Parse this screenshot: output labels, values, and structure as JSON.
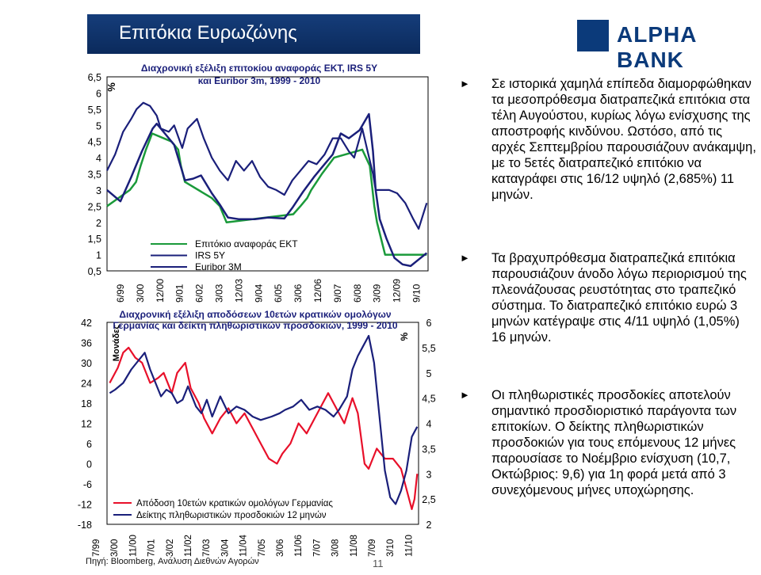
{
  "header": {
    "title": "Επιτόκια Ευρωζώνης",
    "logo_text": "ALPHA BANK"
  },
  "bullets": [
    "Σε ιστορικά χαμηλά επίπεδα διαμορφώθηκαν τα μεσοπρόθεσμα διατραπεζικά επιτόκια στα τέλη Αυγούστου, κυρίως λόγω ενίσχυσης της αποστροφής κινδύνου. Ωστόσο, από τις αρχές Σεπτεμβρίου παρουσιάζουν ανάκαμψη, με το 5ετές διατραπεζικό επιτόκιο να καταγράφει στις 16/12 υψηλό (2,685%) 11 μηνών.",
    "Τα βραχυπρόθεσμα διατραπεζικά επιτόκια παρουσιάζουν άνοδο λόγω περιορισμού της πλεονάζουσας ρευστότητας στο τραπεζικό σύστημα. Το διατραπεζικό επιτόκιο ευρώ 3 μηνών κατέγραψε στις 4/11 υψηλό (1,05%) 16 μηνών.",
    "Οι πληθωριστικές προσδοκίες αποτελούν σημαντικό προσδιοριστικό παράγοντα των επιτοκίων. Ο δείκτης πληθωριστικών προσδοκιών για τους επόμενους 12 μήνες παρουσίασε το Νοέμβριο ενίσχυση (10,7, Οκτώβριος: 9,6) για 1η φορά μετά από 3 συνεχόμενους μήνες υποχώρησης."
  ],
  "footer": {
    "source": "Πηγή: Bloomberg, Ανάλυση Διεθνών Αγορών",
    "page": "11"
  },
  "colors": {
    "ecb": "#1a9a3a",
    "irs": "#1a1f7a",
    "euribor": "#1a1f7a",
    "yield": "#e8102a",
    "sentiment": "#1a1f7a",
    "title_bar": "#0b2a5c"
  },
  "chart_data": [
    {
      "type": "line",
      "title": "Διαχρονική εξέλιξη επιτοκίου αναφοράς ΕΚΤ, IRS 5Y και Euribor 3m, 1999 - 2010",
      "ylabel": "%",
      "ylim": [
        0.5,
        6.5
      ],
      "yticks": [
        "6,5",
        "6",
        "5,5",
        "5",
        "4,5",
        "4",
        "3,5",
        "3",
        "2,5",
        "2",
        "1,5",
        "1",
        "0,5"
      ],
      "xticks": [
        "6/99",
        "3/00",
        "12/00",
        "9/01",
        "6/02",
        "3/03",
        "12/03",
        "9/04",
        "6/05",
        "3/06",
        "12/06",
        "9/07",
        "6/08",
        "3/09",
        "12/09",
        "9/10"
      ],
      "legend": [
        "Επιτόκιο αναφοράς ΕΚΤ",
        "IRS 5Y",
        "Euribor 3M"
      ],
      "series": [
        {
          "name": "Επιτόκιο αναφοράς ΕΚΤ",
          "x": [
            1999.0,
            1999.85,
            2000.08,
            2000.25,
            2000.45,
            2000.68,
            2001.4,
            2001.65,
            2001.75,
            2001.9,
            2002.9,
            2003.2,
            2003.45,
            2005.93,
            2006.2,
            2006.45,
            2006.6,
            2006.8,
            2007.0,
            2007.45,
            2008.5,
            2008.78,
            2008.85,
            2008.95,
            2009.05,
            2009.2,
            2009.35,
            2010.9
          ],
          "y": [
            2.5,
            3.0,
            3.25,
            3.75,
            4.25,
            4.75,
            4.5,
            4.25,
            3.75,
            3.25,
            2.75,
            2.5,
            2.0,
            2.25,
            2.5,
            2.75,
            3.0,
            3.25,
            3.5,
            4.0,
            4.25,
            3.75,
            3.25,
            2.5,
            2.0,
            1.5,
            1.0,
            1.0
          ]
        },
        {
          "name": "IRS 5Y",
          "x": [
            1999.0,
            1999.3,
            1999.6,
            1999.9,
            2000.1,
            2000.35,
            2000.6,
            2000.85,
            2001.0,
            2001.3,
            2001.5,
            2001.8,
            2002.0,
            2002.35,
            2002.6,
            2002.9,
            2003.2,
            2003.5,
            2003.8,
            2004.1,
            2004.4,
            2004.7,
            2005.0,
            2005.3,
            2005.6,
            2005.9,
            2006.2,
            2006.5,
            2006.8,
            2007.1,
            2007.4,
            2007.7,
            2008.0,
            2008.2,
            2008.5,
            2008.7,
            2008.9,
            2009.0,
            2009.2,
            2009.5,
            2009.8,
            2010.1,
            2010.4,
            2010.6,
            2010.75,
            2010.9
          ],
          "y": [
            3.6,
            4.1,
            4.8,
            5.2,
            5.5,
            5.7,
            5.6,
            5.3,
            4.9,
            4.8,
            5.0,
            4.3,
            4.9,
            5.2,
            4.6,
            4.0,
            3.6,
            3.3,
            3.9,
            3.6,
            3.9,
            3.4,
            3.1,
            3.0,
            2.85,
            3.3,
            3.6,
            3.9,
            3.8,
            4.1,
            4.6,
            4.6,
            4.2,
            4.0,
            4.9,
            4.2,
            3.5,
            3.0,
            3.0,
            3.0,
            2.9,
            2.6,
            2.1,
            1.8,
            2.2,
            2.6
          ]
        },
        {
          "name": "Euribor 3M",
          "x": [
            1999.0,
            1999.5,
            1999.9,
            2000.3,
            2000.7,
            2000.85,
            2001.2,
            2001.5,
            2001.9,
            2002.2,
            2002.5,
            2002.9,
            2003.2,
            2003.5,
            2003.9,
            2004.5,
            2005.0,
            2005.6,
            2005.9,
            2006.3,
            2006.7,
            2007.0,
            2007.4,
            2007.7,
            2008.0,
            2008.4,
            2008.75,
            2008.9,
            2009.0,
            2009.15,
            2009.4,
            2009.7,
            2010.0,
            2010.3,
            2010.6,
            2010.9
          ],
          "y": [
            3.0,
            2.65,
            3.4,
            4.2,
            4.9,
            5.05,
            4.7,
            4.4,
            3.3,
            3.35,
            3.45,
            2.9,
            2.55,
            2.15,
            2.1,
            2.1,
            2.15,
            2.12,
            2.45,
            2.95,
            3.4,
            3.7,
            4.1,
            4.75,
            4.6,
            4.85,
            5.35,
            4.2,
            3.0,
            2.1,
            1.5,
            0.9,
            0.7,
            0.65,
            0.85,
            1.05
          ]
        }
      ]
    },
    {
      "type": "line",
      "title": "Διαχρονική εξέλιξη αποδόσεων 10ετών κρατικών ομολόγων Γερμανίας και δείκτη πληθωριστικών προσδοκιών, 1999 - 2010",
      "ylabel_left": "Μονάδες",
      "ylabel_right": "%",
      "ylim_left": [
        -18,
        42
      ],
      "ylim_right": [
        2,
        6
      ],
      "yticks_left": [
        "42",
        "36",
        "30",
        "24",
        "18",
        "12",
        "6",
        "0",
        "-6",
        "-12",
        "-18"
      ],
      "yticks_right": [
        "6",
        "5,5",
        "5",
        "4,5",
        "4",
        "3,5",
        "3",
        "2,5",
        "2"
      ],
      "xticks": [
        "7/99",
        "3/00",
        "11/00",
        "7/01",
        "3/02",
        "11/02",
        "7/03",
        "3/04",
        "11/04",
        "7/05",
        "3/06",
        "11/06",
        "7/07",
        "3/08",
        "11/08",
        "7/09",
        "3/10",
        "11/10"
      ],
      "legend": [
        "Απόδοση 10ετών κρατικών ομολόγων Γερμανίας",
        "Δείκτης πληθωριστικών προσδοκιών 12 μηνών"
      ],
      "series": [
        {
          "name": "Απόδοση 10ετών κρατικών ομολόγων Γερμανίας",
          "axis": "right",
          "x": [
            1999.5,
            1999.8,
            2000.0,
            2000.2,
            2000.45,
            2000.7,
            2001.0,
            2001.3,
            2001.5,
            2001.8,
            2002.0,
            2002.3,
            2002.5,
            2002.8,
            2003.0,
            2003.3,
            2003.6,
            2003.9,
            2004.2,
            2004.5,
            2004.8,
            2005.1,
            2005.4,
            2005.7,
            2005.9,
            2006.2,
            2006.5,
            2006.8,
            2007.1,
            2007.4,
            2007.6,
            2007.9,
            2008.2,
            2008.5,
            2008.7,
            2008.95,
            2009.1,
            2009.4,
            2009.7,
            2010.0,
            2010.3,
            2010.5,
            2010.7,
            2010.8,
            2010.9
          ],
          "y": [
            4.8,
            5.1,
            5.4,
            5.5,
            5.3,
            5.2,
            4.8,
            4.9,
            5.0,
            4.6,
            5.0,
            5.2,
            4.7,
            4.4,
            4.1,
            3.8,
            4.1,
            4.3,
            4.0,
            4.2,
            3.9,
            3.6,
            3.3,
            3.2,
            3.4,
            3.6,
            4.0,
            3.8,
            4.1,
            4.4,
            4.6,
            4.3,
            4.0,
            4.5,
            4.2,
            3.2,
            3.1,
            3.5,
            3.3,
            3.3,
            3.1,
            2.7,
            2.3,
            2.5,
            3.0
          ]
        },
        {
          "name": "Δείκτης πληθωριστικών προσδοκιών 12 μηνών",
          "axis": "left",
          "x": [
            1999.5,
            1999.7,
            2000.0,
            2000.3,
            2000.5,
            2000.8,
            2001.0,
            2001.2,
            2001.4,
            2001.6,
            2001.8,
            2002.0,
            2002.2,
            2002.4,
            2002.7,
            2002.9,
            2003.1,
            2003.3,
            2003.6,
            2003.9,
            2004.2,
            2004.5,
            2004.8,
            2005.1,
            2005.5,
            2005.8,
            2006.0,
            2006.3,
            2006.6,
            2006.9,
            2007.2,
            2007.5,
            2007.8,
            2008.0,
            2008.3,
            2008.5,
            2008.7,
            2008.9,
            2009.1,
            2009.3,
            2009.5,
            2009.7,
            2009.9,
            2010.1,
            2010.3,
            2010.5,
            2010.7,
            2010.9
          ],
          "y": [
            21,
            22,
            24,
            28,
            30,
            33,
            28,
            24,
            20,
            22,
            21,
            18,
            19,
            23,
            17,
            15,
            19,
            14,
            20,
            15,
            17,
            16,
            14,
            13,
            14,
            15,
            16,
            17,
            19,
            16,
            17,
            16,
            14,
            16,
            20,
            28,
            32,
            35,
            38,
            30,
            14,
            -2,
            -10,
            -12,
            -8,
            -2,
            8,
            11
          ]
        }
      ]
    }
  ]
}
